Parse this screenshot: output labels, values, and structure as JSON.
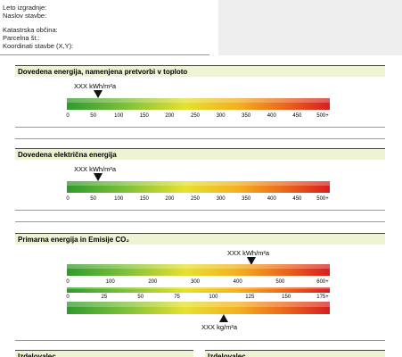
{
  "fields": [
    "Leto izgradnje:",
    "Naslov stavbe:",
    "Katastrska občina:",
    "Parcelna št.:",
    "Koordinati stavbe (X,Y):"
  ],
  "sections": [
    {
      "title": "Dovedena energija, namenjena pretvorbi v toploto",
      "marker": "XXX kWh/m²a",
      "scale": [
        0,
        50,
        100,
        150,
        200,
        250,
        300,
        350,
        400,
        450,
        "500+"
      ]
    },
    {
      "title": "Dovedena električna energija",
      "marker": "XXX kWh/m²a",
      "scale": [
        0,
        50,
        100,
        150,
        200,
        250,
        300,
        350,
        400,
        450,
        "500+"
      ]
    },
    {
      "title": "Primarna energija in Emisije CO₂",
      "marker": "XXX kWh/m²a",
      "scale": [
        0,
        100,
        200,
        300,
        400,
        500,
        "600+"
      ],
      "scale2": [
        0,
        25,
        50,
        75,
        100,
        125,
        150,
        "175+"
      ],
      "marker2": "XXX kg/m²a"
    }
  ],
  "footer": {
    "left": "Izdelovalec",
    "right": "Izdelovalec"
  }
}
